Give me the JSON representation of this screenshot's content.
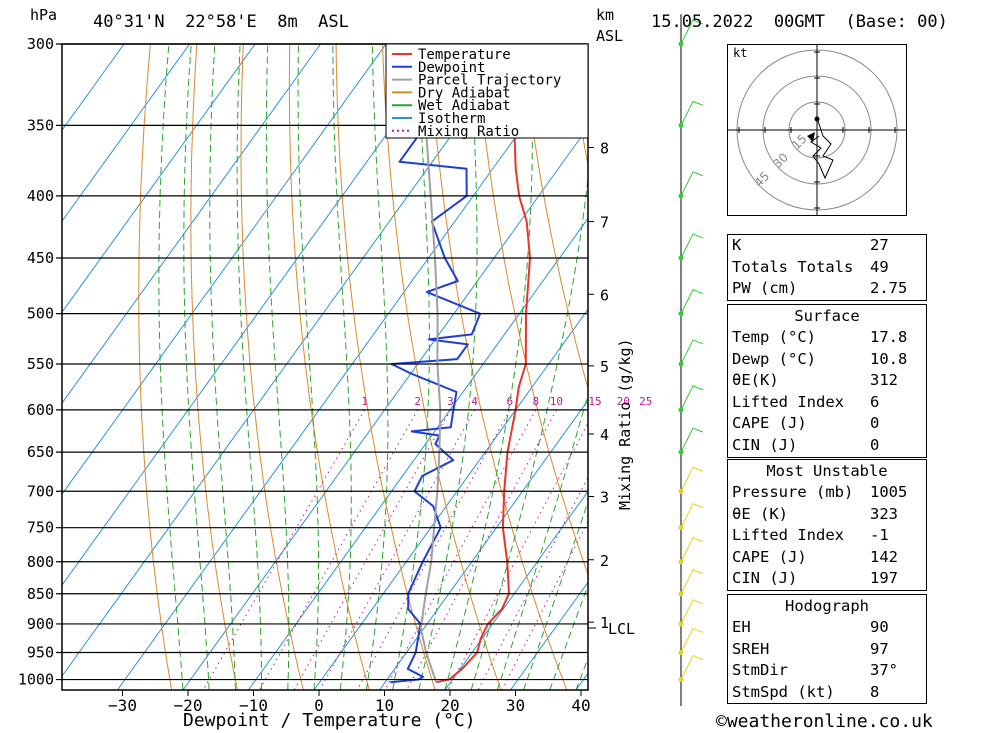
{
  "header": {
    "pressure_unit": "hPa",
    "location": "40°31'N  22°58'E  8m  ASL",
    "height_unit_line1": "km",
    "height_unit_line2": "ASL",
    "datetime": "15.05.2022  00GMT  (Base: 00)"
  },
  "footer": {
    "credit": "©weatheronline.co.uk"
  },
  "chart_data": {
    "type": "line",
    "subtype": "skew-T log-P diagram",
    "xlabel": "Dewpoint / Temperature (°C)",
    "ylabel": "hPa",
    "x_ticks": [
      -30,
      -20,
      -10,
      0,
      10,
      20,
      30,
      40
    ],
    "x_range": [
      -40,
      40
    ],
    "pressure_ticks": [
      300,
      350,
      400,
      450,
      500,
      550,
      600,
      650,
      700,
      750,
      800,
      850,
      900,
      950,
      1000
    ],
    "pressure_range": [
      300,
      1020
    ],
    "height_km_ticks": [
      {
        "label": "8",
        "p": 365
      },
      {
        "label": "7",
        "p": 420
      },
      {
        "label": "6",
        "p": 482
      },
      {
        "label": "5",
        "p": 552
      },
      {
        "label": "4",
        "p": 628
      },
      {
        "label": "3",
        "p": 707
      },
      {
        "label": "2",
        "p": 797
      },
      {
        "label": "1",
        "p": 897
      }
    ],
    "lcl_label": "LCL",
    "lcl_pressure": 907,
    "mixing_ratio_label": "Mixing Ratio (g/kg)",
    "mixing_ratio_values": [
      "1",
      "2",
      "3",
      "4",
      "6",
      "8",
      "10",
      "15",
      "20",
      "25"
    ],
    "legend": [
      "Temperature",
      "Dewpoint",
      "Parcel Trajectory",
      "Dry Adiabat",
      "Wet Adiabat",
      "Isotherm",
      "Mixing Ratio"
    ],
    "colors": {
      "temperature": "#e8342a",
      "dewpoint": "#1f3fd4",
      "parcel": "#a0a0a0",
      "dry_adiabat": "#d98a2e",
      "wet_adiabat": "#2aa52a",
      "isotherm": "#2b94d8",
      "mixing_ratio": "#c0189c",
      "wind": "#33cc33",
      "wind_low": "#e6d020"
    },
    "series": [
      {
        "name": "Temperature",
        "points": [
          [
            1005,
            17.8
          ],
          [
            1000,
            19.5
          ],
          [
            980,
            20.3
          ],
          [
            950,
            20.8
          ],
          [
            925,
            19.8
          ],
          [
            900,
            19.3
          ],
          [
            875,
            19.8
          ],
          [
            850,
            19.2
          ],
          [
            800,
            15.4
          ],
          [
            750,
            11.0
          ],
          [
            700,
            7.2
          ],
          [
            650,
            3.4
          ],
          [
            600,
            0.0
          ],
          [
            575,
            -2.0
          ],
          [
            550,
            -3.5
          ],
          [
            500,
            -9.0
          ],
          [
            450,
            -14.5
          ],
          [
            420,
            -19.0
          ],
          [
            400,
            -23.0
          ],
          [
            380,
            -26.5
          ],
          [
            350,
            -31.5
          ],
          [
            300,
            -41.5
          ]
        ]
      },
      {
        "name": "Dewpoint",
        "points": [
          [
            1005,
            10.8
          ],
          [
            1000,
            14.8
          ],
          [
            995,
            15.2
          ],
          [
            980,
            12.0
          ],
          [
            950,
            11.4
          ],
          [
            900,
            9.0
          ],
          [
            875,
            5.5
          ],
          [
            850,
            3.8
          ],
          [
            800,
            2.5
          ],
          [
            750,
            1.5
          ],
          [
            720,
            -2.0
          ],
          [
            700,
            -6.5
          ],
          [
            680,
            -7.0
          ],
          [
            660,
            -4.0
          ],
          [
            640,
            -8.5
          ],
          [
            630,
            -8.8
          ],
          [
            625,
            -13.5
          ],
          [
            620,
            -8.0
          ],
          [
            600,
            -9.5
          ],
          [
            580,
            -11.0
          ],
          [
            560,
            -20.0
          ],
          [
            550,
            -24.0
          ],
          [
            545,
            -14.5
          ],
          [
            530,
            -14.5
          ],
          [
            525,
            -21.0
          ],
          [
            520,
            -15.0
          ],
          [
            500,
            -16.0
          ],
          [
            480,
            -26.5
          ],
          [
            470,
            -23.0
          ],
          [
            450,
            -27.5
          ],
          [
            420,
            -33.5
          ],
          [
            400,
            -31.0
          ],
          [
            380,
            -34.0
          ],
          [
            375,
            -45.0
          ],
          [
            340,
            -45.0
          ],
          [
            325,
            -44.5
          ],
          [
            310,
            -44.0
          ],
          [
            300,
            -46.0
          ]
        ]
      },
      {
        "name": "Parcel Trajectory",
        "points": [
          [
            1005,
            17.8
          ],
          [
            950,
            13.0
          ],
          [
            907,
            9.5
          ],
          [
            850,
            6.5
          ],
          [
            800,
            3.8
          ],
          [
            750,
            0.5
          ],
          [
            700,
            -3.0
          ],
          [
            650,
            -7.0
          ],
          [
            600,
            -11.5
          ],
          [
            550,
            -17.0
          ],
          [
            500,
            -22.5
          ],
          [
            450,
            -29.0
          ],
          [
            400,
            -36.5
          ],
          [
            350,
            -45.0
          ],
          [
            300,
            -55.0
          ]
        ]
      }
    ],
    "wind_barbs_pressure": [
      1000,
      950,
      900,
      850,
      800,
      750,
      700,
      650,
      600,
      550,
      500,
      450,
      400,
      350,
      300
    ]
  },
  "hodograph": {
    "unit": "kt",
    "rings": [
      "15",
      "30",
      "45"
    ]
  },
  "indices": {
    "k": {
      "label": "K",
      "value": "27"
    },
    "totals": {
      "label": "Totals Totals",
      "value": "49"
    },
    "pw": {
      "label": "PW (cm)",
      "value": "2.75"
    }
  },
  "surface": {
    "title": "Surface",
    "rows": [
      {
        "label": "Temp (°C)",
        "value": "17.8"
      },
      {
        "label": "Dewp (°C)",
        "value": "10.8"
      },
      {
        "label": "θE(K)",
        "value": "312"
      },
      {
        "label": "Lifted Index",
        "value": "6"
      },
      {
        "label": "CAPE (J)",
        "value": "0"
      },
      {
        "label": "CIN (J)",
        "value": "0"
      }
    ]
  },
  "most_unstable": {
    "title": "Most Unstable",
    "rows": [
      {
        "label": "Pressure (mb)",
        "value": "1005"
      },
      {
        "label": "θE (K)",
        "value": "323"
      },
      {
        "label": "Lifted Index",
        "value": "-1"
      },
      {
        "label": "CAPE (J)",
        "value": "142"
      },
      {
        "label": "CIN (J)",
        "value": "197"
      }
    ]
  },
  "hodo_stats": {
    "title": "Hodograph",
    "rows": [
      {
        "label": "EH",
        "value": "90"
      },
      {
        "label": "SREH",
        "value": "97"
      },
      {
        "label": "StmDir",
        "value": "37°"
      },
      {
        "label": "StmSpd (kt)",
        "value": "8"
      }
    ]
  }
}
